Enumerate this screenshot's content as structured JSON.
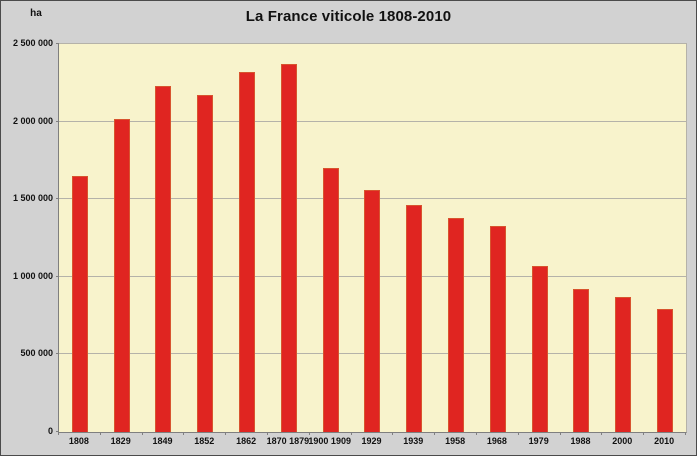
{
  "title": "La France viticole 1808-2010",
  "y_axis_unit": "ha",
  "colors": {
    "background": "#d2d2d2",
    "plot_background": "#f8f3cc",
    "bar": "#e02521",
    "bar_border": "#d8542e",
    "gridline": "#b5b2a9",
    "axis": "#7f7f7f",
    "text": "#111111",
    "frame": "#4b4b4b"
  },
  "chart_data": {
    "type": "bar",
    "title": "La France viticole 1808-2010",
    "xlabel": "",
    "ylabel": "ha",
    "ylim": [
      0,
      2500000
    ],
    "grid": true,
    "legend": false,
    "y_tick_values": [
      0,
      500000,
      1000000,
      1500000,
      2000000,
      2500000
    ],
    "y_tick_labels": [
      "0",
      "500 000",
      "1 000 000",
      "1 500 000",
      "2 000 000",
      "2 500 000"
    ],
    "categories": [
      "1808",
      "1829",
      "1849",
      "1852",
      "1862",
      "1870 1879",
      "1900 1909",
      "1929",
      "1939",
      "1958",
      "1968",
      "1979",
      "1988",
      "2000",
      "2010"
    ],
    "values": [
      1650000,
      2020000,
      2230000,
      2170000,
      2320000,
      2370000,
      1700000,
      1560000,
      1460000,
      1380000,
      1330000,
      1070000,
      920000,
      870000,
      790000
    ]
  }
}
